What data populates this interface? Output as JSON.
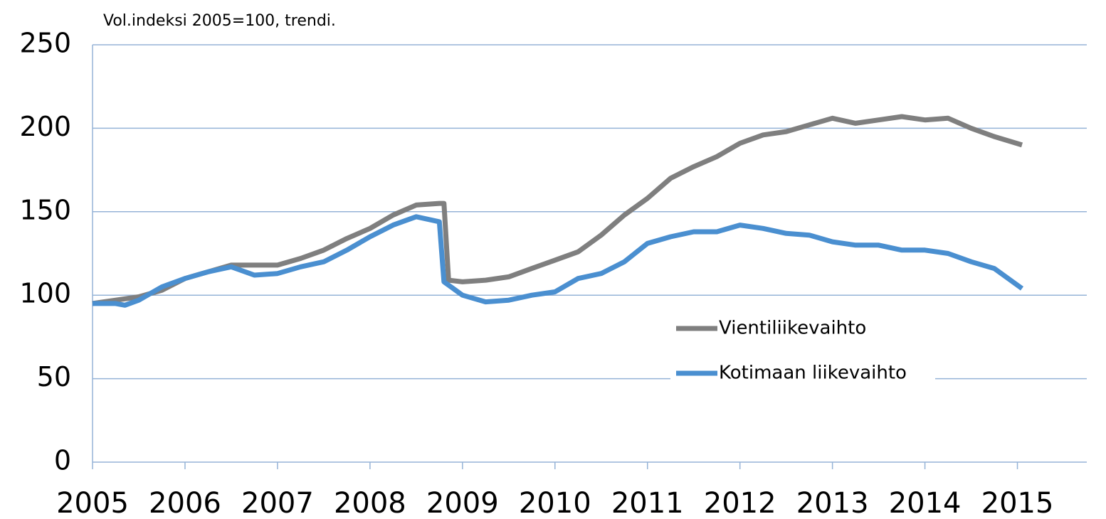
{
  "chart_data": {
    "type": "line",
    "subtitle": "Vol.indeksi 2005=100, trendi.",
    "ylim": [
      0,
      250
    ],
    "yticks": [
      0,
      50,
      100,
      150,
      200,
      250
    ],
    "xlim": [
      2005,
      2015.75
    ],
    "xticks": [
      2005,
      2006,
      2007,
      2008,
      2009,
      2010,
      2011,
      2012,
      2013,
      2014,
      2015
    ],
    "grid": true,
    "legend": "center-right",
    "series": [
      {
        "name": "Vientiliikevaihto",
        "color": "#7f7f7f",
        "x": [
          2005,
          2005.25,
          2005.5,
          2005.75,
          2006,
          2006.25,
          2006.5,
          2006.75,
          2007,
          2007.25,
          2007.5,
          2007.75,
          2008,
          2008.25,
          2008.5,
          2008.75,
          2008.8,
          2008.85,
          2009,
          2009.25,
          2009.5,
          2009.75,
          2010,
          2010.25,
          2010.5,
          2010.75,
          2011,
          2011.25,
          2011.5,
          2011.75,
          2012,
          2012.25,
          2012.5,
          2012.75,
          2013,
          2013.25,
          2013.5,
          2013.75,
          2014,
          2014.25,
          2014.5,
          2014.75,
          2015.05
        ],
        "values": [
          95,
          97,
          99,
          103,
          110,
          114,
          118,
          118,
          118,
          122,
          127,
          134,
          140,
          148,
          154,
          155,
          155,
          109,
          108,
          109,
          111,
          116,
          121,
          126,
          136,
          148,
          158,
          170,
          177,
          183,
          191,
          196,
          198,
          202,
          206,
          203,
          205,
          207,
          205,
          206,
          200,
          195,
          190
        ]
      },
      {
        "name": "Kotimaan liikevaihto",
        "color": "#4a8fd0",
        "x": [
          2005,
          2005.25,
          2005.35,
          2005.5,
          2005.75,
          2006,
          2006.25,
          2006.5,
          2006.75,
          2007,
          2007.25,
          2007.5,
          2007.75,
          2008,
          2008.25,
          2008.5,
          2008.75,
          2008.8,
          2009,
          2009.25,
          2009.5,
          2009.75,
          2010,
          2010.25,
          2010.5,
          2010.75,
          2011,
          2011.25,
          2011.5,
          2011.75,
          2012,
          2012.25,
          2012.5,
          2012.75,
          2013,
          2013.25,
          2013.5,
          2013.75,
          2014,
          2014.25,
          2014.5,
          2014.75,
          2015.05
        ],
        "values": [
          95,
          95,
          94,
          97,
          105,
          110,
          114,
          117,
          112,
          113,
          117,
          120,
          127,
          135,
          142,
          147,
          144,
          108,
          100,
          96,
          97,
          100,
          102,
          110,
          113,
          120,
          131,
          135,
          138,
          138,
          142,
          140,
          137,
          136,
          132,
          130,
          130,
          127,
          127,
          125,
          120,
          116,
          104
        ]
      }
    ]
  }
}
